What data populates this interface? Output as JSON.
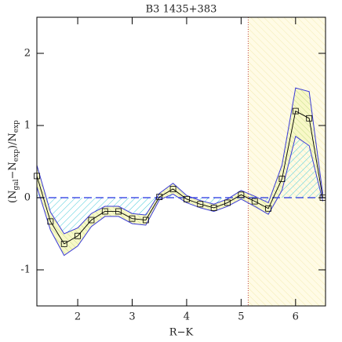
{
  "chart_data": {
    "type": "line",
    "title": "B3 1435+383",
    "x_label": "R−K",
    "y_label_parts": [
      "(N",
      "gal",
      "−N",
      "exp",
      ")/N",
      "exp"
    ],
    "x": [
      1.25,
      1.5,
      1.75,
      2.0,
      2.25,
      2.5,
      2.75,
      3.0,
      3.25,
      3.5,
      3.75,
      4.0,
      4.25,
      4.5,
      4.75,
      5.0,
      5.25,
      5.5,
      5.75,
      6.0,
      6.25,
      6.5
    ],
    "series": [
      {
        "color": "#000000",
        "values": [
          0.3,
          -0.33,
          -0.64,
          -0.53,
          -0.31,
          -0.19,
          -0.19,
          -0.29,
          -0.31,
          0.01,
          0.12,
          -0.02,
          -0.09,
          -0.14,
          -0.07,
          0.04,
          -0.05,
          -0.15,
          0.26,
          1.2,
          1.1,
          0.0
        ]
      },
      {
        "color": "#3a3ad8",
        "values": [
          0.45,
          -0.2,
          -0.5,
          -0.42,
          -0.22,
          -0.12,
          -0.12,
          -0.22,
          -0.24,
          0.06,
          0.2,
          0.03,
          -0.04,
          -0.09,
          -0.02,
          0.1,
          0.02,
          -0.07,
          0.45,
          1.52,
          1.47,
          0.05
        ]
      },
      {
        "color": "#3a3ad8",
        "values": [
          0.15,
          -0.45,
          -0.8,
          -0.67,
          -0.4,
          -0.26,
          -0.26,
          -0.36,
          -0.38,
          -0.03,
          0.05,
          -0.07,
          -0.14,
          -0.19,
          -0.12,
          -0.02,
          -0.12,
          -0.23,
          0.1,
          0.85,
          0.72,
          -0.05
        ]
      }
    ],
    "cutoff_x": 5.13,
    "xlim": [
      1.25,
      6.55
    ],
    "ylim": [
      -1.5,
      2.5
    ],
    "xticks": [
      2,
      3,
      4,
      5,
      6
    ],
    "yticks": [
      -1,
      0,
      1,
      2
    ]
  }
}
